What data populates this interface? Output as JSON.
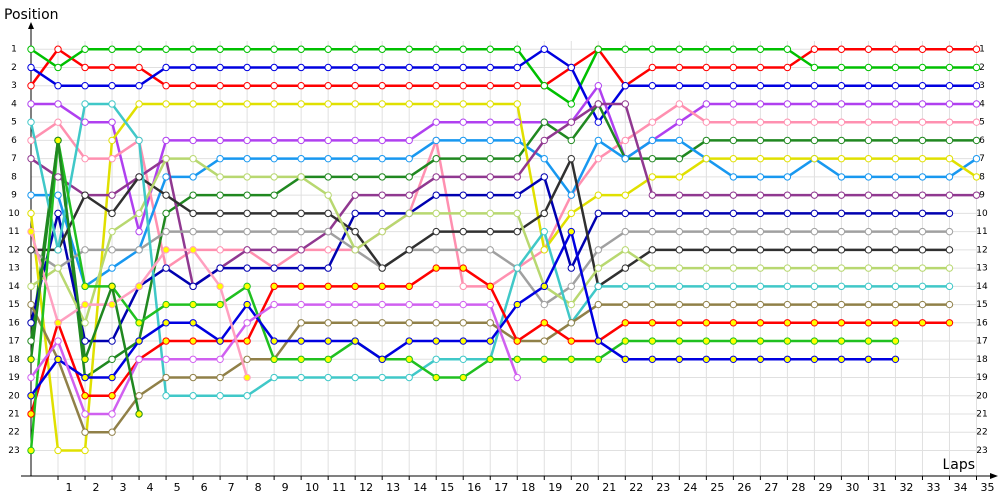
{
  "chart_data": {
    "type": "line",
    "y_label": "Position",
    "x_label": "Laps",
    "xlim": [
      0,
      35.5
    ],
    "ylim": [
      0,
      24.4
    ],
    "y_inverted": true,
    "grid": true,
    "xticks": [
      1,
      2,
      3,
      4,
      5,
      6,
      7,
      8,
      9,
      10,
      11,
      12,
      13,
      14,
      15,
      16,
      17,
      18,
      19,
      20,
      21,
      22,
      23,
      24,
      25,
      26,
      27,
      28,
      29,
      30,
      31,
      32,
      33,
      34,
      35
    ],
    "yticks": [
      1,
      2,
      3,
      4,
      5,
      6,
      7,
      8,
      9,
      10,
      11,
      12,
      13,
      14,
      15,
      16,
      17,
      18,
      19,
      20,
      21,
      22,
      23
    ],
    "x": [
      0,
      1,
      2,
      3,
      4,
      5,
      6,
      7,
      8,
      9,
      10,
      11,
      12,
      13,
      14,
      15,
      16,
      17,
      18,
      19,
      20,
      21,
      22,
      23,
      24,
      25,
      26,
      27,
      28,
      29,
      30,
      31,
      32,
      33,
      34,
      35
    ],
    "series": [
      {
        "color": "#ff0000",
        "marker_fill": "#ffffff",
        "values": [
          3,
          1,
          2,
          2,
          2,
          3,
          3,
          3,
          3,
          3,
          3,
          3,
          3,
          3,
          3,
          3,
          3,
          3,
          3,
          3,
          2,
          1,
          3,
          2,
          2,
          2,
          2,
          2,
          2,
          1,
          1,
          1,
          1,
          1,
          1,
          1
        ]
      },
      {
        "color": "#00c000",
        "marker_fill": "#ffffff",
        "values": [
          1,
          2,
          1,
          1,
          1,
          1,
          1,
          1,
          1,
          1,
          1,
          1,
          1,
          1,
          1,
          1,
          1,
          1,
          1,
          3,
          4,
          1,
          1,
          1,
          1,
          1,
          1,
          1,
          1,
          2,
          2,
          2,
          2,
          2,
          2,
          2
        ]
      },
      {
        "color": "#0000e0",
        "marker_fill": "#ffffff",
        "values": [
          2,
          3,
          3,
          3,
          3,
          2,
          2,
          2,
          2,
          2,
          2,
          2,
          2,
          2,
          2,
          2,
          2,
          2,
          2,
          1,
          2,
          5,
          3,
          3,
          3,
          3,
          3,
          3,
          3,
          3,
          3,
          3,
          3,
          3,
          3,
          3
        ]
      },
      {
        "color": "#b040f0",
        "marker_fill": "#ffffff",
        "values": [
          4,
          4,
          5,
          5,
          11,
          6,
          6,
          6,
          6,
          6,
          6,
          6,
          6,
          6,
          6,
          5,
          5,
          5,
          5,
          5,
          5,
          3,
          7,
          6,
          5,
          4,
          4,
          4,
          4,
          4,
          4,
          4,
          4,
          4,
          4,
          4
        ]
      },
      {
        "color": "#ff90b0",
        "marker_fill": "#ffffff",
        "values": [
          6,
          5,
          7,
          7,
          6,
          13,
          12,
          12,
          12,
          13,
          12,
          12,
          12,
          11,
          10,
          6,
          14,
          14,
          13,
          12,
          9,
          7,
          6,
          5,
          4,
          5,
          5,
          5,
          5,
          5,
          5,
          5,
          5,
          5,
          5,
          5
        ]
      },
      {
        "color": "#208820",
        "marker_fill": "#ffffff",
        "values": [
          17,
          6,
          19,
          18,
          17,
          10,
          9,
          9,
          9,
          9,
          8,
          8,
          8,
          8,
          8,
          7,
          7,
          7,
          7,
          5,
          6,
          4,
          7,
          7,
          7,
          6,
          6,
          6,
          6,
          6,
          6,
          6,
          6,
          6,
          6,
          6
        ]
      },
      {
        "color": "#1898f0",
        "marker_fill": "#ffffff",
        "values": [
          9,
          9,
          14,
          13,
          12,
          8,
          8,
          7,
          7,
          7,
          7,
          7,
          7,
          7,
          7,
          6,
          6,
          6,
          6,
          7,
          9,
          6,
          7,
          6,
          6,
          7,
          8,
          8,
          8,
          7,
          8,
          8,
          8,
          8,
          8,
          7
        ]
      },
      {
        "color": "#e0e000",
        "marker_fill": "#ffffff",
        "values": [
          10,
          23,
          23,
          6,
          4,
          4,
          4,
          4,
          4,
          4,
          4,
          4,
          4,
          4,
          4,
          4,
          4,
          4,
          4,
          12,
          10,
          9,
          9,
          8,
          8,
          7,
          7,
          7,
          7,
          7,
          7,
          7,
          7,
          7,
          7,
          8
        ]
      },
      {
        "color": "#903890",
        "marker_fill": "#ffffff",
        "values": [
          7,
          8,
          9,
          9,
          8,
          7,
          14,
          13,
          12,
          12,
          12,
          11,
          9,
          9,
          9,
          8,
          8,
          8,
          8,
          6,
          5,
          4,
          4,
          9,
          9,
          9,
          9,
          9,
          9,
          9,
          9,
          9,
          9,
          9,
          9,
          9
        ]
      },
      {
        "color": "#0000b0",
        "marker_fill": "#ffffff",
        "values": [
          16,
          10,
          17,
          17,
          14,
          13,
          14,
          13,
          13,
          13,
          13,
          13,
          10,
          10,
          10,
          9,
          9,
          9,
          9,
          8,
          13,
          10,
          10,
          10,
          10,
          10,
          10,
          10,
          10,
          10,
          10,
          10,
          10,
          10,
          10,
          null
        ]
      },
      {
        "color": "#a0a0a0",
        "marker_fill": "#ffffff",
        "values": [
          12,
          13,
          12,
          12,
          12,
          11,
          11,
          11,
          11,
          11,
          11,
          11,
          12,
          13,
          12,
          12,
          12,
          12,
          13,
          15,
          14,
          12,
          11,
          11,
          11,
          11,
          11,
          11,
          11,
          11,
          11,
          11,
          11,
          11,
          11,
          null
        ]
      },
      {
        "color": "#303030",
        "marker_fill": "#ffffff",
        "values": [
          12,
          12,
          9,
          10,
          8,
          9,
          10,
          10,
          10,
          10,
          10,
          10,
          11,
          13,
          12,
          11,
          11,
          11,
          11,
          10,
          7,
          14,
          13,
          12,
          12,
          12,
          12,
          12,
          12,
          12,
          12,
          12,
          12,
          12,
          12,
          null
        ]
      },
      {
        "color": "#b8d870",
        "marker_fill": "#ffffff",
        "values": [
          14,
          13,
          16,
          11,
          10,
          7,
          7,
          8,
          8,
          8,
          8,
          9,
          12,
          11,
          10,
          10,
          10,
          10,
          10,
          14,
          15,
          13,
          12,
          13,
          13,
          13,
          13,
          13,
          13,
          13,
          13,
          13,
          13,
          13,
          13,
          null
        ]
      },
      {
        "color": "#40c8c8",
        "marker_fill": "#ffffff",
        "values": [
          5,
          12,
          4,
          4,
          6,
          20,
          20,
          20,
          20,
          19,
          19,
          19,
          19,
          19,
          19,
          18,
          18,
          18,
          13,
          11,
          16,
          14,
          14,
          14,
          14,
          14,
          14,
          14,
          14,
          14,
          14,
          14,
          14,
          14,
          14,
          null
        ]
      },
      {
        "color": "#908048",
        "marker_fill": "#ffffff",
        "values": [
          15,
          18,
          22,
          22,
          20,
          19,
          19,
          19,
          18,
          18,
          16,
          16,
          16,
          16,
          16,
          16,
          16,
          16,
          17,
          17,
          16,
          15,
          15,
          15,
          15,
          15,
          15,
          15,
          15,
          15,
          15,
          15,
          15,
          15,
          15,
          null
        ]
      },
      {
        "color": "#ff0000",
        "marker_fill": "#ffff00",
        "values": [
          21,
          16,
          20,
          20,
          18,
          17,
          17,
          17,
          17,
          14,
          14,
          14,
          14,
          14,
          14,
          13,
          13,
          14,
          17,
          16,
          17,
          17,
          16,
          16,
          16,
          16,
          16,
          16,
          16,
          16,
          16,
          16,
          16,
          16,
          16,
          null
        ]
      },
      {
        "color": "#20c020",
        "marker_fill": "#ffff00",
        "values": [
          23,
          6,
          14,
          14,
          16,
          15,
          15,
          15,
          14,
          18,
          18,
          18,
          17,
          18,
          18,
          19,
          19,
          18,
          18,
          18,
          18,
          18,
          17,
          17,
          17,
          17,
          17,
          17,
          17,
          17,
          17,
          17,
          17,
          null,
          null,
          null
        ]
      },
      {
        "color": "#0000e0",
        "marker_fill": "#ffff00",
        "values": [
          20,
          18,
          19,
          19,
          17,
          16,
          16,
          17,
          15,
          17,
          17,
          17,
          17,
          18,
          17,
          17,
          17,
          17,
          15,
          14,
          11,
          17,
          18,
          18,
          18,
          18,
          18,
          18,
          18,
          18,
          18,
          18,
          18,
          null,
          null,
          null
        ]
      },
      {
        "color": "#d060f0",
        "marker_fill": "#ffffff",
        "values": [
          19,
          17,
          21,
          21,
          18,
          18,
          18,
          18,
          16,
          15,
          15,
          15,
          15,
          15,
          15,
          15,
          15,
          15,
          19,
          null,
          null,
          null,
          null,
          null,
          null,
          null,
          null,
          null,
          null,
          null,
          null,
          null,
          null,
          null,
          null,
          null
        ]
      },
      {
        "color": "#ffa0c0",
        "marker_fill": "#ffff00",
        "values": [
          11,
          16,
          15,
          15,
          14,
          12,
          12,
          14,
          19,
          null,
          null,
          null,
          null,
          null,
          null,
          null,
          null,
          null,
          null,
          null,
          null,
          null,
          null,
          null,
          null,
          null,
          null,
          null,
          null,
          null,
          null,
          null,
          null,
          null,
          null,
          null
        ]
      },
      {
        "color": "#208820",
        "marker_fill": "#ffff00",
        "values": [
          18,
          6,
          18,
          14,
          21,
          null,
          null,
          null,
          null,
          null,
          null,
          null,
          null,
          null,
          null,
          null,
          null,
          null,
          null,
          null,
          null,
          null,
          null,
          null,
          null,
          null,
          null,
          null,
          null,
          null,
          null,
          null,
          null,
          null,
          null,
          null
        ]
      }
    ]
  }
}
